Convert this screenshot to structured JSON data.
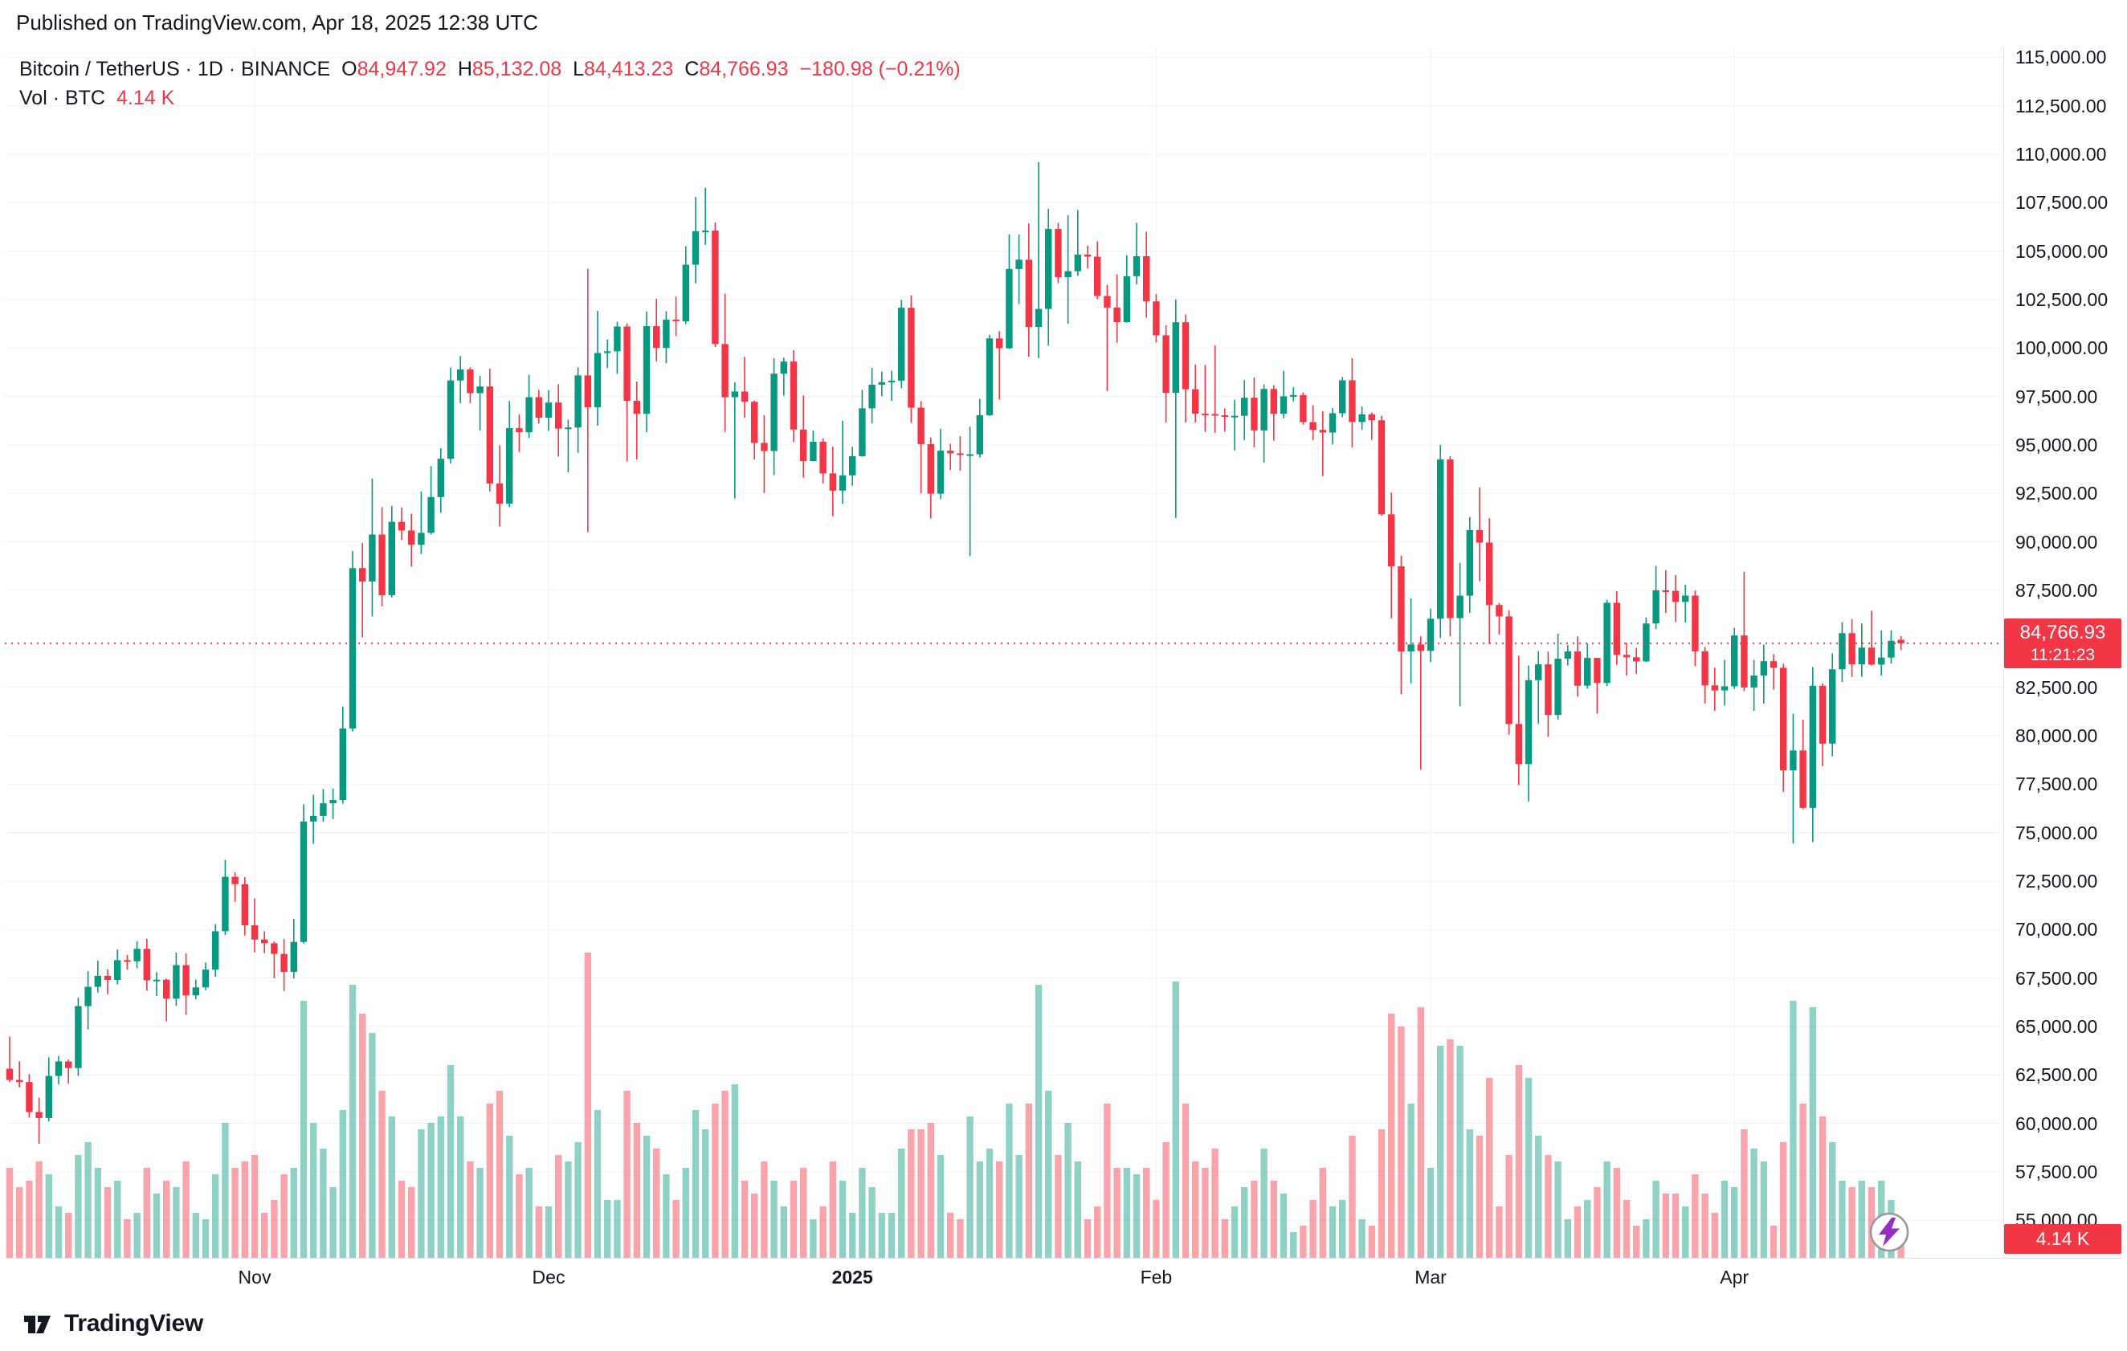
{
  "publish_bar": {
    "text": "Published on TradingView.com, Apr 18, 2025 12:38 UTC"
  },
  "legend": {
    "title": "Bitcoin / TetherUS · 1D · BINANCE",
    "ohlc": [
      {
        "k": "O",
        "v": "84,947.92"
      },
      {
        "k": "H",
        "v": "85,132.08"
      },
      {
        "k": "L",
        "v": "84,413.23"
      },
      {
        "k": "C",
        "v": "84,766.93"
      }
    ],
    "change": "−180.98 (−0.21%)",
    "vol_label": "Vol · BTC",
    "vol_value": "4.14 K"
  },
  "current": {
    "price_label": "84,766.93",
    "countdown": "11:21:23",
    "volume_label": "4.14 K"
  },
  "footer": {
    "brand": "TradingView"
  },
  "colors": {
    "up": "#089981",
    "down": "#F23645",
    "vol_up": "rgba(8,153,129,0.45)",
    "vol_down": "rgba(242,54,69,0.45)",
    "grid": "#f0f3fa",
    "text": "#131722",
    "badge": "#F23645",
    "lightning": "#962fbf",
    "lightning_ring": "#9598a1"
  },
  "chart_data": {
    "type": "candlestick+volume",
    "title": "Bitcoin / TetherUS · 1D · BINANCE",
    "symbol": "Bitcoin / TetherUS",
    "exchange": "BINANCE",
    "interval": "1D",
    "start_date": "2024-10-07",
    "end_date": "2025-04-18",
    "y_axis": {
      "min": 55000,
      "max": 115000,
      "step": 2500,
      "ticks": [
        115000,
        112500,
        110000,
        107500,
        105000,
        102500,
        100000,
        97500,
        95000,
        92500,
        90000,
        87500,
        85000,
        82500,
        80000,
        77500,
        75000,
        72500,
        70000,
        67500,
        65000,
        62500,
        60000,
        57500,
        55000
      ],
      "tick_format": "#,##0.00"
    },
    "x_ticks": [
      {
        "index": 25,
        "label": "Nov",
        "bold": false
      },
      {
        "index": 55,
        "label": "Dec",
        "bold": false
      },
      {
        "index": 86,
        "label": "2025",
        "bold": true
      },
      {
        "index": 117,
        "label": "Feb",
        "bold": false
      },
      {
        "index": 145,
        "label": "Mar",
        "bold": false
      },
      {
        "index": 176,
        "label": "Apr",
        "bold": false
      }
    ],
    "last": {
      "open": 84947.92,
      "high": 85132.08,
      "low": 84413.23,
      "close": 84766.93,
      "change": -180.98,
      "change_pct": -0.21,
      "volume_kBTC": 4.14,
      "countdown": "11:21:23"
    },
    "columns": [
      "open",
      "high",
      "low",
      "close",
      "volume_kBTC"
    ],
    "candles": [
      [
        62818,
        64478,
        62130,
        62236,
        28
      ],
      [
        62236,
        63200,
        61860,
        62131,
        22
      ],
      [
        62131,
        62540,
        60315,
        60582,
        24
      ],
      [
        60582,
        61325,
        58946,
        60274,
        30
      ],
      [
        60274,
        63400,
        60100,
        62445,
        26
      ],
      [
        62445,
        63480,
        62020,
        63193,
        16
      ],
      [
        63193,
        63290,
        62050,
        62851,
        14
      ],
      [
        62851,
        66480,
        62450,
        66046,
        32
      ],
      [
        66046,
        67850,
        64850,
        67041,
        36
      ],
      [
        67041,
        68395,
        66750,
        67612,
        28
      ],
      [
        67612,
        67940,
        66660,
        67399,
        22
      ],
      [
        67399,
        68970,
        67170,
        68418,
        24
      ],
      [
        68418,
        68690,
        67930,
        68362,
        12
      ],
      [
        68362,
        69400,
        68000,
        69001,
        14
      ],
      [
        69001,
        69519,
        66840,
        67377,
        28
      ],
      [
        67377,
        67800,
        66570,
        67411,
        20
      ],
      [
        67411,
        67460,
        65260,
        66432,
        24
      ],
      [
        66432,
        68810,
        66060,
        68161,
        22
      ],
      [
        68161,
        68770,
        65590,
        66600,
        30
      ],
      [
        66600,
        67420,
        66400,
        67014,
        14
      ],
      [
        67014,
        68290,
        66870,
        67929,
        12
      ],
      [
        67929,
        70280,
        67560,
        69910,
        26
      ],
      [
        69910,
        73600,
        69720,
        72720,
        42
      ],
      [
        72720,
        72950,
        71430,
        72339,
        28
      ],
      [
        72339,
        72700,
        69690,
        70215,
        30
      ],
      [
        70215,
        71600,
        68820,
        69482,
        32
      ],
      [
        69482,
        69910,
        68780,
        69289,
        14
      ],
      [
        69289,
        69390,
        67480,
        68741,
        18
      ],
      [
        68741,
        69500,
        66830,
        67811,
        26
      ],
      [
        67811,
        70550,
        67470,
        69359,
        28
      ],
      [
        69359,
        76460,
        69280,
        75571,
        80
      ],
      [
        75571,
        76950,
        74420,
        75857,
        42
      ],
      [
        75857,
        77240,
        75560,
        76509,
        34
      ],
      [
        76509,
        77270,
        75690,
        76677,
        22
      ],
      [
        76677,
        81500,
        76490,
        80370,
        46
      ],
      [
        80370,
        89530,
        80220,
        88647,
        85
      ],
      [
        88647,
        89940,
        85072,
        87952,
        76
      ],
      [
        87952,
        93265,
        86150,
        90375,
        70
      ],
      [
        90375,
        91790,
        86670,
        87250,
        52
      ],
      [
        87250,
        91850,
        87120,
        91032,
        44
      ],
      [
        91032,
        91775,
        90090,
        90586,
        24
      ],
      [
        90586,
        91450,
        88722,
        89845,
        22
      ],
      [
        89845,
        92594,
        89376,
        90464,
        40
      ],
      [
        90464,
        93905,
        90370,
        92310,
        42
      ],
      [
        92310,
        94831,
        91500,
        94286,
        44
      ],
      [
        94286,
        98988,
        94040,
        98324,
        60
      ],
      [
        98324,
        99588,
        97155,
        98892,
        44
      ],
      [
        98892,
        99000,
        97160,
        97672,
        30
      ],
      [
        97672,
        98564,
        95734,
        98013,
        28
      ],
      [
        98013,
        98935,
        92600,
        93010,
        48
      ],
      [
        93010,
        94980,
        90791,
        91965,
        52
      ],
      [
        91965,
        97270,
        91795,
        95863,
        38
      ],
      [
        95863,
        96564,
        94640,
        95652,
        26
      ],
      [
        95652,
        98620,
        95364,
        97461,
        28
      ],
      [
        97461,
        97836,
        96110,
        96405,
        16
      ],
      [
        96405,
        97830,
        95720,
        97185,
        16
      ],
      [
        97185,
        98130,
        94395,
        95840,
        32
      ],
      [
        95840,
        96305,
        93578,
        95897,
        30
      ],
      [
        95897,
        99000,
        94587,
        98587,
        36
      ],
      [
        98587,
        104088,
        90500,
        96945,
        95
      ],
      [
        96945,
        101909,
        95987,
        99740,
        46
      ],
      [
        99740,
        100439,
        98969,
        99831,
        18
      ],
      [
        99831,
        101351,
        98657,
        101109,
        18
      ],
      [
        101109,
        101265,
        94150,
        97276,
        52
      ],
      [
        97276,
        98270,
        94256,
        96606,
        42
      ],
      [
        96606,
        101888,
        95647,
        101126,
        38
      ],
      [
        101126,
        102540,
        99311,
        100004,
        34
      ],
      [
        100004,
        101895,
        99210,
        101459,
        26
      ],
      [
        101459,
        102650,
        100609,
        101372,
        18
      ],
      [
        101372,
        105250,
        101234,
        104298,
        28
      ],
      [
        104298,
        107793,
        103333,
        106029,
        46
      ],
      [
        106029,
        108268,
        105321,
        106057,
        40
      ],
      [
        106057,
        106477,
        100050,
        100204,
        48
      ],
      [
        100204,
        102800,
        95672,
        97461,
        52
      ],
      [
        97461,
        98233,
        92232,
        97756,
        54
      ],
      [
        97756,
        99540,
        96400,
        97224,
        24
      ],
      [
        97224,
        97287,
        94250,
        95104,
        20
      ],
      [
        95104,
        96538,
        92520,
        94686,
        30
      ],
      [
        94686,
        99486,
        93435,
        98676,
        24
      ],
      [
        98676,
        99503,
        97538,
        99299,
        16
      ],
      [
        99299,
        99888,
        95137,
        95795,
        24
      ],
      [
        95795,
        97544,
        93310,
        94164,
        28
      ],
      [
        94164,
        95741,
        94155,
        95163,
        12
      ],
      [
        95163,
        95340,
        93010,
        93530,
        16
      ],
      [
        93530,
        94900,
        91317,
        92643,
        30
      ],
      [
        92643,
        96250,
        91954,
        93429,
        24
      ],
      [
        93429,
        94900,
        92888,
        94419,
        14
      ],
      [
        94419,
        97839,
        94392,
        96886,
        28
      ],
      [
        96886,
        98976,
        96100,
        98107,
        22
      ],
      [
        98107,
        98778,
        97514,
        98236,
        14
      ],
      [
        98236,
        98836,
        97276,
        98314,
        14
      ],
      [
        98314,
        102480,
        97920,
        102078,
        34
      ],
      [
        102078,
        102724,
        96132,
        96922,
        40
      ],
      [
        96922,
        97259,
        92500,
        95043,
        40
      ],
      [
        95043,
        95382,
        91203,
        92484,
        42
      ],
      [
        92484,
        95836,
        92206,
        94701,
        32
      ],
      [
        94701,
        95057,
        93712,
        94566,
        14
      ],
      [
        94566,
        95450,
        93673,
        94488,
        12
      ],
      [
        94488,
        95940,
        89256,
        94516,
        44
      ],
      [
        94516,
        97371,
        94346,
        96534,
        30
      ],
      [
        96534,
        100681,
        96500,
        100497,
        34
      ],
      [
        100497,
        100866,
        97335,
        99987,
        30
      ],
      [
        99987,
        105865,
        99950,
        104077,
        48
      ],
      [
        104077,
        105844,
        102271,
        104556,
        32
      ],
      [
        104556,
        106422,
        99550,
        101089,
        48
      ],
      [
        101089,
        109588,
        99475,
        102016,
        85
      ],
      [
        102016,
        107181,
        100121,
        106146,
        52
      ],
      [
        106146,
        106457,
        103341,
        103653,
        32
      ],
      [
        103653,
        106850,
        101252,
        103960,
        42
      ],
      [
        103960,
        107120,
        103718,
        104819,
        30
      ],
      [
        104819,
        105283,
        104105,
        104714,
        12
      ],
      [
        104714,
        105500,
        102520,
        102682,
        16
      ],
      [
        102682,
        103260,
        97777,
        102087,
        48
      ],
      [
        102087,
        103800,
        100272,
        101336,
        28
      ],
      [
        101336,
        104782,
        101310,
        103703,
        28
      ],
      [
        103703,
        106457,
        103278,
        104735,
        26
      ],
      [
        104735,
        105997,
        101560,
        102405,
        28
      ],
      [
        102405,
        102782,
        100279,
        100655,
        18
      ],
      [
        100655,
        101176,
        96150,
        97688,
        36
      ],
      [
        97688,
        102500,
        91231,
        101328,
        86
      ],
      [
        101328,
        101732,
        96150,
        97871,
        48
      ],
      [
        97871,
        99149,
        96155,
        96615,
        30
      ],
      [
        96615,
        99120,
        95676,
        96593,
        28
      ],
      [
        96593,
        100138,
        95628,
        96529,
        34
      ],
      [
        96529,
        96880,
        95688,
        96482,
        12
      ],
      [
        96482,
        97324,
        94713,
        96500,
        16
      ],
      [
        96500,
        98345,
        95256,
        97437,
        22
      ],
      [
        97437,
        98478,
        94876,
        95747,
        24
      ],
      [
        95747,
        98119,
        94088,
        97885,
        34
      ],
      [
        97885,
        98083,
        95217,
        96608,
        24
      ],
      [
        96608,
        98826,
        96378,
        97508,
        20
      ],
      [
        97508,
        97972,
        97248,
        97570,
        8
      ],
      [
        97570,
        97704,
        96046,
        96175,
        10
      ],
      [
        96175,
        97050,
        95242,
        95773,
        18
      ],
      [
        95773,
        96738,
        93388,
        95639,
        28
      ],
      [
        95639,
        96899,
        95029,
        96635,
        16
      ],
      [
        96635,
        98500,
        96431,
        98333,
        18
      ],
      [
        98333,
        99475,
        94871,
        96181,
        38
      ],
      [
        96181,
        96980,
        95776,
        96577,
        12
      ],
      [
        96577,
        96676,
        95261,
        96273,
        10
      ],
      [
        96273,
        96500,
        91349,
        91418,
        40
      ],
      [
        91418,
        92540,
        86051,
        88736,
        76
      ],
      [
        88736,
        89286,
        82131,
        84347,
        72
      ],
      [
        84347,
        87078,
        82700,
        84705,
        48
      ],
      [
        84705,
        85120,
        78248,
        84373,
        78
      ],
      [
        84373,
        86558,
        83794,
        86031,
        28
      ],
      [
        86031,
        95000,
        85040,
        94248,
        66
      ],
      [
        94248,
        94416,
        85117,
        86065,
        68
      ],
      [
        86065,
        88911,
        81529,
        87222,
        66
      ],
      [
        87222,
        91283,
        86334,
        90606,
        40
      ],
      [
        90606,
        92810,
        87969,
        89962,
        38
      ],
      [
        89962,
        91218,
        84717,
        86742,
        56
      ],
      [
        86742,
        86847,
        85218,
        86154,
        16
      ],
      [
        86154,
        86471,
        80052,
        80601,
        32
      ],
      [
        80601,
        84123,
        77459,
        78532,
        60
      ],
      [
        78532,
        83617,
        76606,
        82862,
        56
      ],
      [
        82862,
        84358,
        80607,
        83680,
        38
      ],
      [
        83680,
        84336,
        79939,
        81066,
        32
      ],
      [
        81066,
        85263,
        80818,
        83969,
        30
      ],
      [
        83969,
        84676,
        83618,
        84343,
        12
      ],
      [
        84343,
        85117,
        82010,
        82579,
        16
      ],
      [
        82579,
        84756,
        82432,
        84010,
        18
      ],
      [
        84010,
        84021,
        81134,
        82718,
        22
      ],
      [
        82718,
        87022,
        82553,
        86854,
        30
      ],
      [
        86854,
        87453,
        83657,
        84167,
        28
      ],
      [
        84167,
        84792,
        83106,
        84043,
        18
      ],
      [
        84043,
        84526,
        83191,
        83832,
        10
      ],
      [
        83832,
        86092,
        83795,
        85787,
        12
      ],
      [
        85787,
        88765,
        85495,
        87498,
        24
      ],
      [
        87498,
        88542,
        86322,
        87471,
        20
      ],
      [
        87471,
        88289,
        85861,
        86900,
        20
      ],
      [
        86900,
        87786,
        85837,
        87227,
        16
      ],
      [
        87227,
        87489,
        83586,
        84353,
        26
      ],
      [
        84353,
        84575,
        81644,
        82597,
        20
      ],
      [
        82597,
        83506,
        81283,
        82334,
        14
      ],
      [
        82334,
        83911,
        81556,
        82548,
        24
      ],
      [
        82548,
        85559,
        82404,
        85169,
        22
      ],
      [
        85169,
        88466,
        82298,
        82485,
        40
      ],
      [
        82485,
        83909,
        81282,
        83102,
        34
      ],
      [
        83102,
        84696,
        81659,
        83843,
        30
      ],
      [
        83843,
        84207,
        82377,
        83504,
        10
      ],
      [
        83504,
        83704,
        77097,
        78214,
        36
      ],
      [
        78214,
        81119,
        74436,
        79235,
        80
      ],
      [
        79235,
        80823,
        76198,
        76271,
        48
      ],
      [
        76271,
        83541,
        74508,
        82573,
        78
      ],
      [
        82573,
        82700,
        78426,
        79591,
        44
      ],
      [
        79591,
        84247,
        78936,
        83423,
        36
      ],
      [
        83423,
        85856,
        82769,
        85287,
        24
      ],
      [
        85287,
        86015,
        83027,
        83684,
        22
      ],
      [
        83684,
        85785,
        83034,
        84542,
        24
      ],
      [
        84542,
        86450,
        83614,
        83668,
        22
      ],
      [
        83668,
        85428,
        83104,
        84030,
        24
      ],
      [
        84030,
        85434,
        83718,
        84895,
        18
      ],
      [
        84947.92,
        85132.08,
        84413.23,
        84766.93,
        4.14
      ]
    ]
  }
}
